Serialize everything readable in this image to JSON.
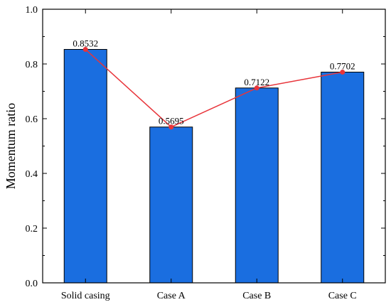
{
  "chart_data": {
    "type": "bar",
    "categories": [
      "Solid casing",
      "Case A",
      "Case B",
      "Case C"
    ],
    "values": [
      0.8532,
      0.5695,
      0.7122,
      0.7702
    ],
    "data_labels": [
      "0.8532",
      "0.5695",
      "0.7122",
      "0.7702"
    ],
    "overlay_line": {
      "type": "line",
      "values": [
        0.8532,
        0.5695,
        0.7122,
        0.7702
      ],
      "marker": "circle"
    },
    "title": "",
    "xlabel": "",
    "ylabel": "Momentum ratio",
    "ylim": [
      0.0,
      1.0
    ],
    "yticks": [
      "0.0",
      "0.2",
      "0.4",
      "0.6",
      "0.8",
      "1.0"
    ],
    "grid": false,
    "legend": "none",
    "colors": {
      "bar": "#1a6ee0",
      "bar_edge": "#000000",
      "line": "#e8343a",
      "marker": "#e8343a"
    }
  }
}
